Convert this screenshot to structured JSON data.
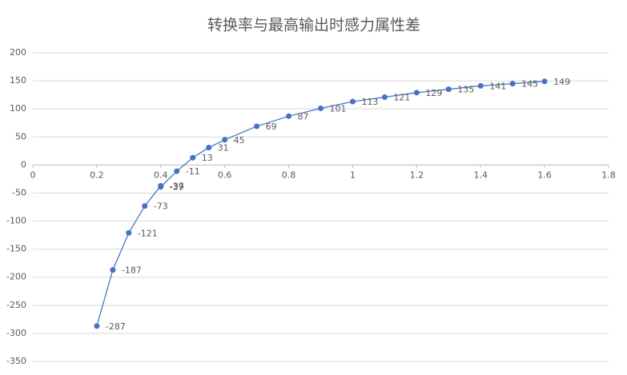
{
  "chart_data": {
    "type": "scatter",
    "title": "转换率与最高输出时感力属性差",
    "x": [
      0.2,
      0.25,
      0.3,
      0.35,
      0.4,
      0.4,
      0.45,
      0.5,
      0.55,
      0.6,
      0.7,
      0.8,
      0.9,
      1.0,
      1.1,
      1.2,
      1.3,
      1.4,
      1.5,
      1.6
    ],
    "values": [
      -287,
      -187,
      -121,
      -73,
      -37,
      -39,
      -11,
      13,
      31,
      45,
      69,
      87,
      101,
      113,
      121,
      129,
      135,
      141,
      145,
      149
    ],
    "color": "#4472c4",
    "line": true,
    "data_labels": true,
    "xlim": [
      0,
      1.8
    ],
    "xticks": [
      0,
      0.2,
      0.4,
      0.6,
      0.8,
      1,
      1.2,
      1.4,
      1.6,
      1.8
    ],
    "ylim": [
      -350,
      200
    ],
    "yticks": [
      -350,
      -300,
      -250,
      -200,
      -150,
      -100,
      -50,
      0,
      50,
      100,
      150,
      200
    ],
    "grid": true
  }
}
